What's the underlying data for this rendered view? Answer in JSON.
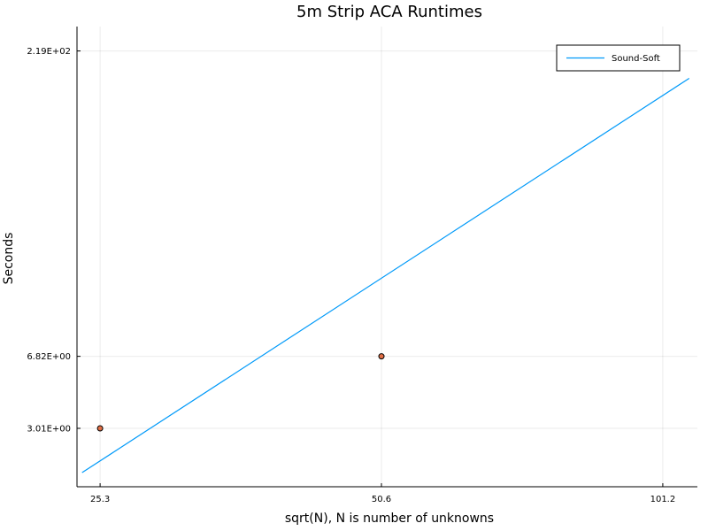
{
  "chart_data": {
    "type": "scatter",
    "title": "5m Strip ACA Runtimes",
    "xlabel": "sqrt(N), N is number of unknowns",
    "ylabel": "Seconds",
    "x_scale": "log",
    "y_scale": "log",
    "grid": true,
    "legend_position": "top-right",
    "xlim": [
      23.9,
      110.2
    ],
    "ylim": [
      1.55,
      289.0
    ],
    "x_ticks": [
      {
        "value": 25.3,
        "label": "25.3"
      },
      {
        "value": 50.6,
        "label": "50.6"
      },
      {
        "value": 101.2,
        "label": "101.2"
      }
    ],
    "y_ticks": [
      {
        "value": 3.01,
        "label": "3.01E+00"
      },
      {
        "value": 6.82,
        "label": "6.82E+00"
      },
      {
        "value": 219,
        "label": "2.19E+02"
      }
    ],
    "series": [
      {
        "name": "",
        "kind": "scatter",
        "color": "#e26f46",
        "points": [
          {
            "x": 25.3,
            "y": 3.01
          },
          {
            "x": 50.6,
            "y": 6.82
          },
          {
            "x": 101.2,
            "y": 219
          }
        ]
      },
      {
        "name": "Sound-Soft",
        "kind": "line",
        "color": "#009af9",
        "points": [
          {
            "x": 24.2,
            "y": 1.82
          },
          {
            "x": 108.0,
            "y": 160.5
          }
        ]
      }
    ]
  }
}
